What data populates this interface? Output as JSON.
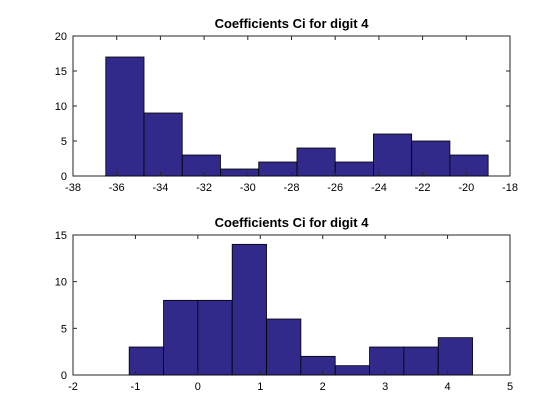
{
  "chart_data": [
    {
      "type": "bar",
      "title": "Coefficients Ci for digit 4",
      "xlabel": "",
      "ylabel": "",
      "xlim": [
        -38,
        -18
      ],
      "ylim": [
        0,
        20
      ],
      "xticks": [
        -38,
        -36,
        -34,
        -32,
        -30,
        -28,
        -26,
        -24,
        -22,
        -20,
        -18
      ],
      "yticks": [
        0,
        5,
        10,
        15,
        20
      ],
      "grid": false,
      "legend": "none",
      "bar_color": "#312A8A",
      "bin_edges": [
        -36.5,
        -34.75,
        -33.0,
        -31.25,
        -29.5,
        -27.75,
        -26.0,
        -24.25,
        -22.5,
        -20.75,
        -19.0
      ],
      "values": [
        17,
        9,
        3,
        1,
        2,
        4,
        2,
        6,
        5,
        3
      ]
    },
    {
      "type": "bar",
      "title": "Coefficients Ci for digit 4",
      "xlabel": "",
      "ylabel": "",
      "xlim": [
        -2,
        5
      ],
      "ylim": [
        0,
        15
      ],
      "xticks": [
        -2,
        -1,
        0,
        1,
        2,
        3,
        4,
        5
      ],
      "yticks": [
        0,
        5,
        10,
        15
      ],
      "grid": false,
      "legend": "none",
      "bar_color": "#312A8A",
      "bin_edges": [
        -1.1,
        -0.55,
        0.0,
        0.55,
        1.1,
        1.65,
        2.2,
        2.75,
        3.3,
        3.85,
        4.4
      ],
      "values": [
        3,
        8,
        8,
        14,
        6,
        2,
        1,
        3,
        3,
        4
      ]
    }
  ]
}
